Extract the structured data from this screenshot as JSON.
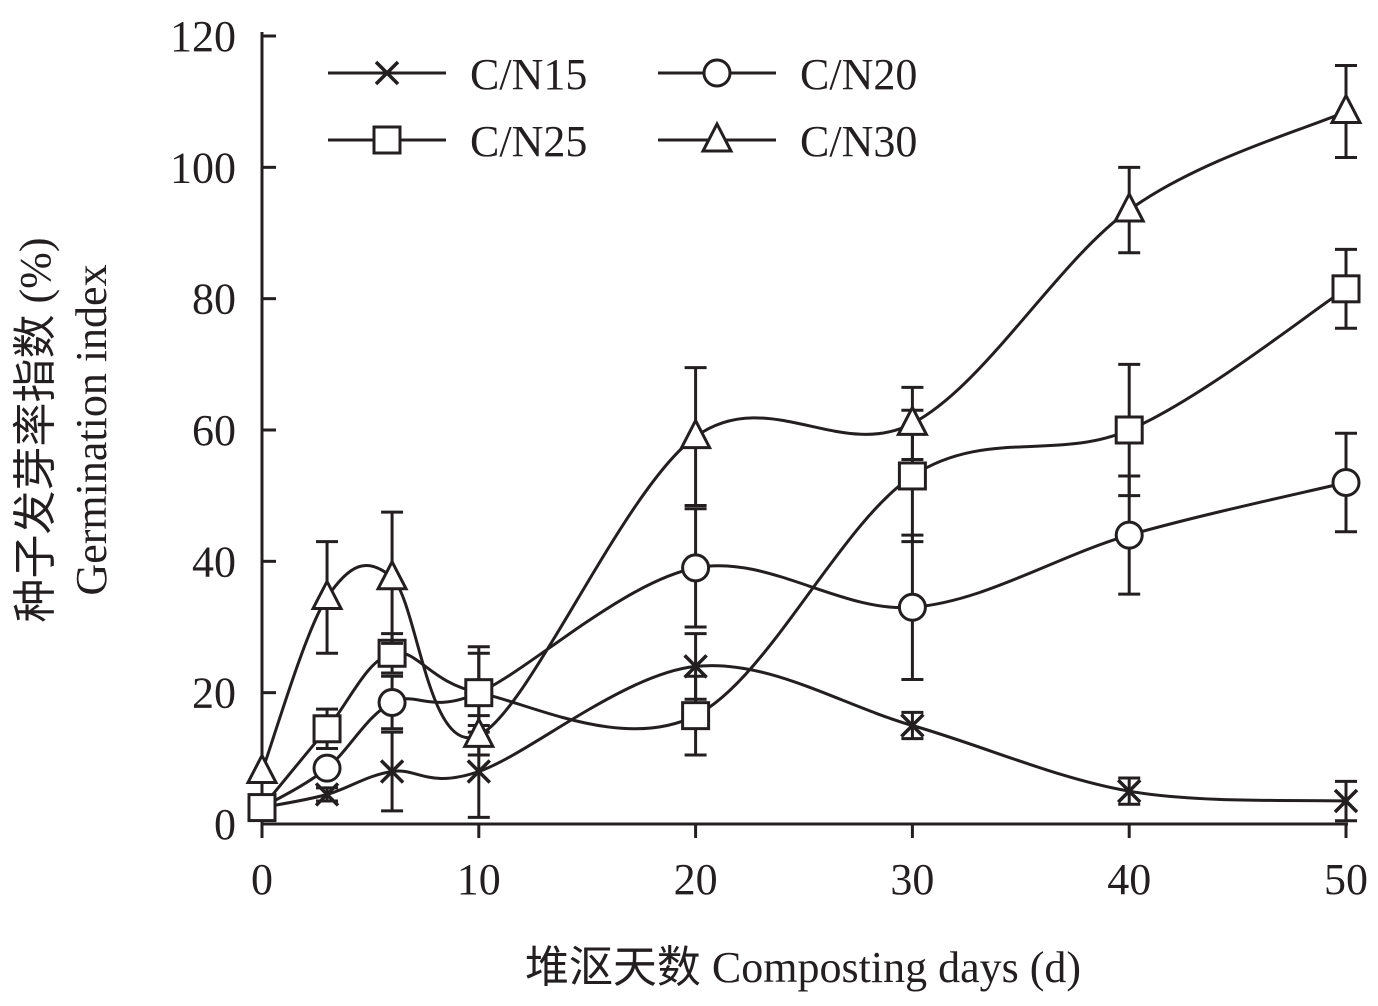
{
  "chart_data": {
    "type": "line",
    "xlabel": "堆沤天数 Composting days (d)",
    "ylabel_line1": "种子发芽率指数 (%)",
    "ylabel_line2": "Germination index",
    "xlim": [
      0,
      50
    ],
    "ylim": [
      0,
      120
    ],
    "x_ticks": [
      0,
      10,
      20,
      30,
      40,
      50
    ],
    "y_ticks": [
      0,
      20,
      40,
      60,
      80,
      100,
      120
    ],
    "x_tick_labels": [
      "0",
      "10",
      "20",
      "30",
      "40",
      "50"
    ],
    "y_tick_labels": [
      "0",
      "20",
      "40",
      "60",
      "80",
      "100",
      "120"
    ],
    "x": [
      0,
      3,
      6,
      10,
      20,
      30,
      40,
      50
    ],
    "grid": false,
    "legend_position": "top-left",
    "series": [
      {
        "name": "C/N15",
        "marker": "x",
        "values": [
          2.5,
          4.5,
          8,
          8,
          24,
          15,
          5,
          3.5
        ],
        "errors": [
          0,
          1,
          6,
          7,
          5,
          2,
          2,
          3
        ]
      },
      {
        "name": "C/N20",
        "marker": "circle",
        "values": [
          2.5,
          8.5,
          18.5,
          20,
          39,
          33,
          44,
          52
        ],
        "errors": [
          0,
          1,
          4,
          6,
          9,
          11,
          9,
          7.5
        ]
      },
      {
        "name": "C/N25",
        "marker": "square",
        "values": [
          2.5,
          14.5,
          26,
          20,
          16.5,
          53,
          60,
          81.5
        ],
        "errors": [
          0,
          3,
          3,
          7,
          6,
          10,
          10,
          6
        ]
      },
      {
        "name": "C/N30",
        "marker": "triangle",
        "values": [
          8,
          34.5,
          37.5,
          13.5,
          59,
          61,
          93.5,
          108.5
        ],
        "errors": [
          0,
          8.5,
          10,
          3,
          10.5,
          5.5,
          6.5,
          7
        ]
      }
    ],
    "colors": {
      "ink": "#231f20",
      "marker_fill": "#ffffff"
    }
  }
}
